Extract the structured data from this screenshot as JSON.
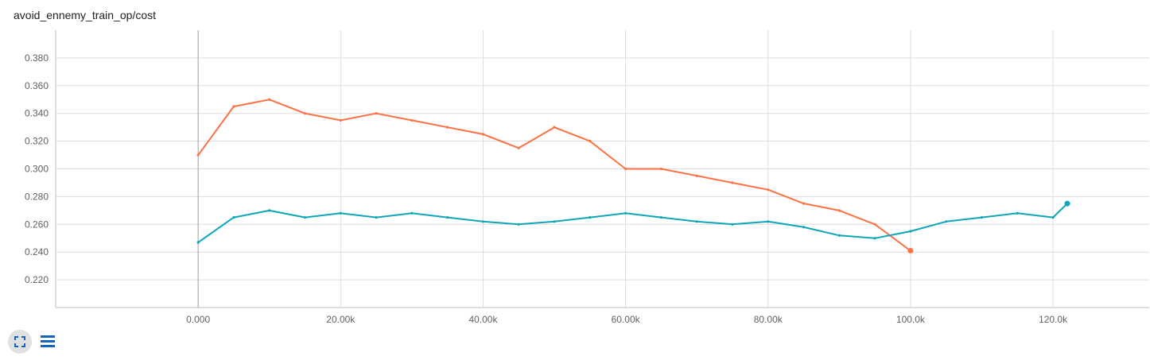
{
  "title": "avoid_ennemy_train_op/cost",
  "colors": {
    "orange": "#ff7043",
    "teal": "#0fa6b7",
    "grid": "#dddddd"
  },
  "icons": {
    "expand": "fullscreen-icon",
    "data": "list-icon"
  },
  "chart_data": {
    "type": "line",
    "title": "avoid_ennemy_train_op/cost",
    "xlabel": "",
    "ylabel": "",
    "xlim": [
      -20000,
      133500
    ],
    "ylim": [
      0.2,
      0.4
    ],
    "grid": true,
    "x_ticks": [
      0,
      20000,
      40000,
      60000,
      80000,
      100000,
      120000
    ],
    "x_tick_labels": [
      "0.000",
      "20.00k",
      "40.00k",
      "60.00k",
      "80.00k",
      "100.0k",
      "120.0k"
    ],
    "y_ticks": [
      0.22,
      0.24,
      0.26,
      0.28,
      0.3,
      0.32,
      0.34,
      0.36,
      0.38
    ],
    "y_tick_labels": [
      "0.220",
      "0.240",
      "0.260",
      "0.280",
      "0.300",
      "0.320",
      "0.340",
      "0.360",
      "0.380"
    ],
    "series": [
      {
        "color": "#ff7043",
        "x": [
          0,
          5000,
          10000,
          15000,
          20000,
          25000,
          30000,
          35000,
          40000,
          45000,
          50000,
          55000,
          60000,
          65000,
          70000,
          75000,
          80000,
          85000,
          90000,
          95000,
          100000
        ],
        "y": [
          0.31,
          0.345,
          0.35,
          0.34,
          0.335,
          0.34,
          0.335,
          0.33,
          0.325,
          0.315,
          0.33,
          0.32,
          0.3,
          0.3,
          0.295,
          0.29,
          0.285,
          0.275,
          0.27,
          0.26,
          0.241
        ]
      },
      {
        "color": "#0fa6b7",
        "x": [
          0,
          5000,
          10000,
          15000,
          20000,
          25000,
          30000,
          35000,
          40000,
          45000,
          50000,
          55000,
          60000,
          65000,
          70000,
          75000,
          80000,
          85000,
          90000,
          95000,
          100000,
          105000,
          110000,
          115000,
          120000,
          122000
        ],
        "y": [
          0.247,
          0.265,
          0.27,
          0.265,
          0.268,
          0.265,
          0.268,
          0.265,
          0.262,
          0.26,
          0.262,
          0.265,
          0.268,
          0.265,
          0.262,
          0.26,
          0.262,
          0.258,
          0.252,
          0.25,
          0.255,
          0.262,
          0.265,
          0.268,
          0.265,
          0.275
        ]
      }
    ]
  }
}
